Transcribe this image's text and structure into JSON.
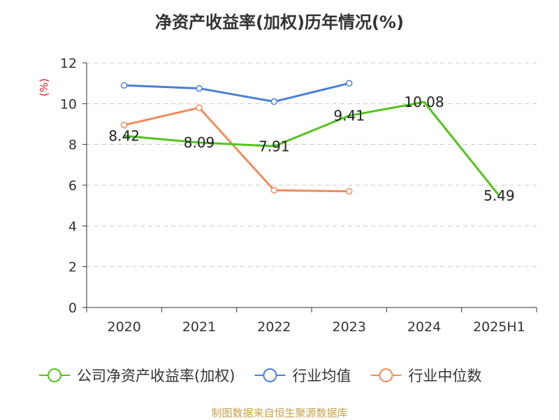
{
  "chart_data": {
    "type": "line",
    "title": "净资产收益率(加权)历年情况(%)",
    "ylabel": "(%)",
    "categories": [
      "2020",
      "2021",
      "2022",
      "2023",
      "2024",
      "2025H1"
    ],
    "ylim": [
      0,
      12
    ],
    "yticks": [
      0,
      2,
      4,
      6,
      8,
      10,
      12
    ],
    "grid": true,
    "legend_position": "bottom",
    "series": [
      {
        "name": "公司净资产收益率(加权)",
        "color": "#52c41a",
        "values": [
          8.42,
          8.09,
          7.91,
          9.41,
          10.08,
          5.49
        ],
        "labels": [
          "8.42",
          "8.09",
          "7.91",
          "9.41",
          "10.08",
          "5.49"
        ]
      },
      {
        "name": "行业均值",
        "color": "#4a7fd6",
        "values": [
          10.9,
          10.75,
          10.1,
          11.0,
          null,
          null
        ]
      },
      {
        "name": "行业中位数",
        "color": "#f28b5b",
        "values": [
          8.95,
          9.8,
          5.75,
          5.7,
          null,
          null
        ]
      }
    ]
  },
  "source_note": "制图数据来自恒生聚源数据库"
}
